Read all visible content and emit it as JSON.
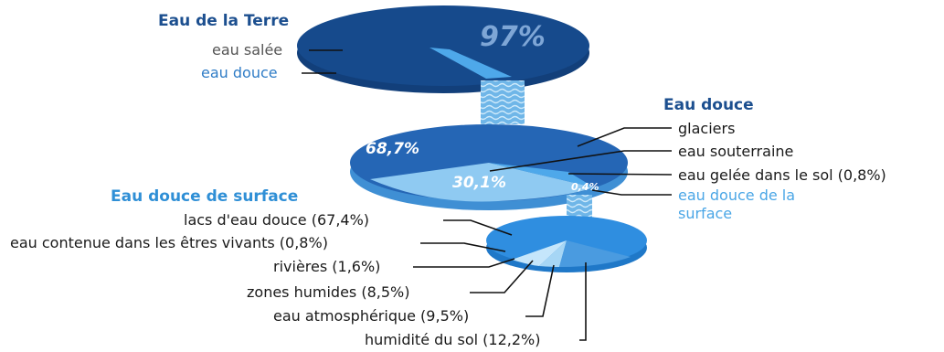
{
  "titles": {
    "earth": "Eau de la Terre",
    "fresh": "Eau douce",
    "surface": "Eau douce de surface"
  },
  "earth_water": {
    "salt_label": "eau salée",
    "fresh_label": "eau douce",
    "salt_pct": "97%",
    "fresh_pct": "3%"
  },
  "fresh_water": {
    "glaciers_label": "glaciers",
    "groundwater_label": "eau souterraine",
    "frozen_soil_label": "eau gelée dans le sol (0,8%)",
    "surface_label_line1": "eau douce de la",
    "surface_label_line2": "surface",
    "glaciers_pct": "68,7%",
    "groundwater_pct": "30,1%",
    "surface_pct": "0,4%"
  },
  "surface_water": {
    "lakes_label": "lacs d'eau douce (67,4%)",
    "living_label": "eau contenue dans les êtres vivants (0,8%)",
    "rivers_label": "rivières (1,6%)",
    "wetlands_label": "zones humides (8,5%)",
    "atmosphere_label": "eau atmosphérique (9,5%)",
    "soil_label": "humidité du sol (12,2%)"
  },
  "colors": {
    "dark_blue": "#164a8c",
    "mid_blue": "#2566b5",
    "light_blue": "#4ea8ea",
    "pale_blue": "#8fcaf2",
    "title_blue": "#1c4f8f"
  }
}
